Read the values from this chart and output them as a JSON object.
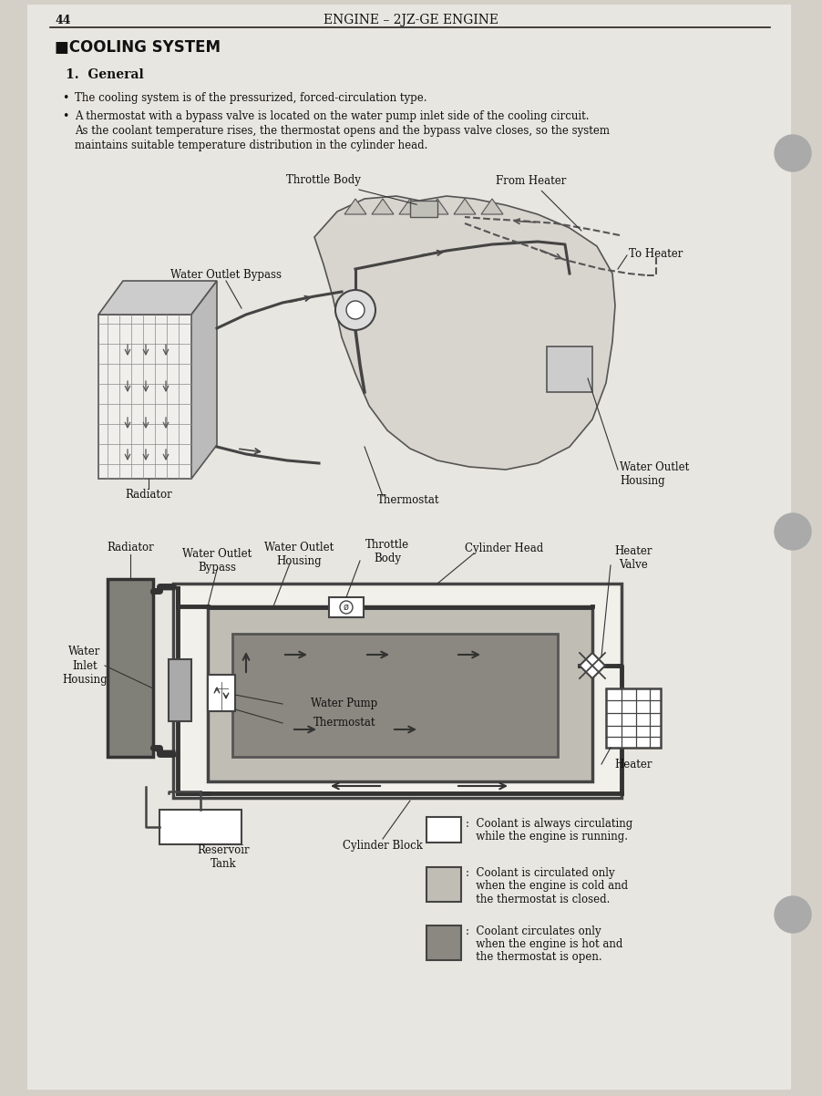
{
  "page_num": "44",
  "header_title": "ENGINE – 2JZ-GE ENGINE",
  "section_title": "■COOLING SYSTEM",
  "subsection": "1.  General",
  "bullet1": "The cooling system is of the pressurized, forced-circulation type.",
  "bullet2a": "A thermostat with a bypass valve is located on the water pump inlet side of the cooling circuit.",
  "bullet2b": "As the coolant temperature rises, the thermostat opens and the bypass valve closes, so the system",
  "bullet2c": "maintains suitable temperature distribution in the cylinder head.",
  "bg_color": "#d4d0c8",
  "text_color": "#111111",
  "legend_white_label1": ":  Coolant is always circulating",
  "legend_white_label2": "   while the engine is running.",
  "legend_gray_label1": ":  Coolant is circulated only",
  "legend_gray_label2": "   when the engine is cold and",
  "legend_gray_label3": "   the thermostat is closed.",
  "legend_dark_label1": ":  Coolant circulates only",
  "legend_dark_label2": "   when the engine is hot and",
  "legend_dark_label3": "   the thermostat is open."
}
